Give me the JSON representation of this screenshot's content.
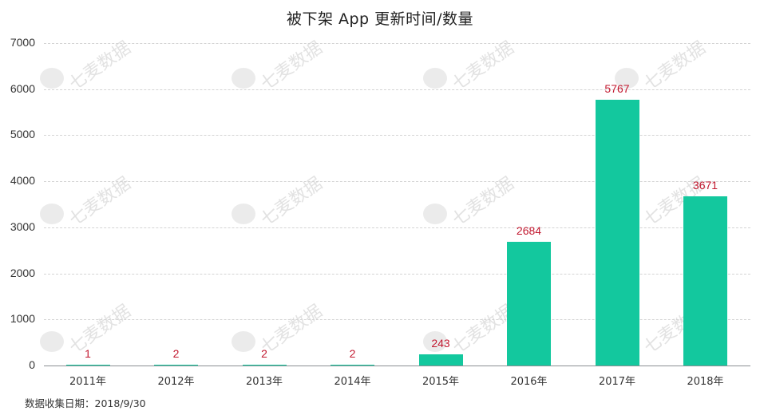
{
  "chart_data": {
    "type": "bar",
    "title": "被下架 App 更新时间/数量",
    "categories": [
      "2011年",
      "2012年",
      "2013年",
      "2014年",
      "2015年",
      "2016年",
      "2017年",
      "2018年"
    ],
    "values": [
      1,
      2,
      2,
      2,
      243,
      2684,
      5767,
      3671
    ],
    "xlabel": "",
    "ylabel": "",
    "ylim": [
      0,
      7000
    ],
    "yticks": [
      0,
      1000,
      2000,
      3000,
      4000,
      5000,
      6000,
      7000
    ],
    "grid": true,
    "legend": null,
    "bar_color": "#13c89e",
    "label_color": "#c2182f"
  },
  "footnote": "数据收集日期：2018/9/30",
  "watermark": "七麦数据",
  "yticks_text": [
    "7000",
    "6000",
    "5000",
    "4000",
    "3000",
    "2000",
    "1000",
    "0"
  ]
}
